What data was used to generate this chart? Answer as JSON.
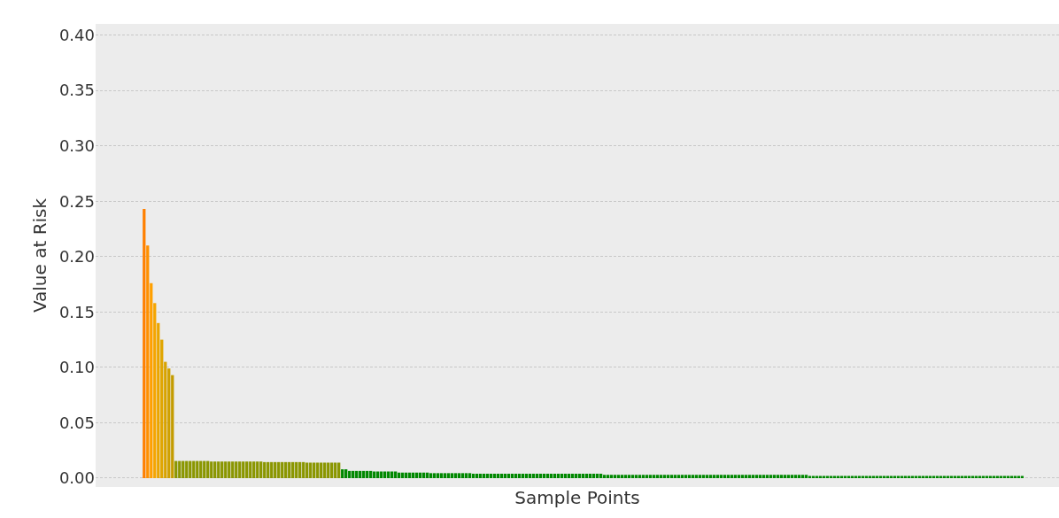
{
  "chart_data": {
    "type": "bar",
    "xlabel": "Sample Points",
    "ylabel": "Value at Risk",
    "categories": [
      null,
      null,
      null,
      null,
      null,
      null,
      null,
      null,
      null,
      null,
      null,
      null,
      null,
      null,
      null,
      null,
      null,
      null,
      null,
      null,
      null,
      null,
      null,
      null,
      null,
      null,
      null,
      null,
      null,
      null,
      null,
      null,
      null,
      null,
      null,
      null,
      null,
      null,
      null,
      null,
      null,
      null,
      null,
      null,
      null,
      null,
      null,
      null,
      null,
      null,
      null,
      null,
      null,
      null,
      null,
      null,
      null,
      null,
      null,
      null,
      null,
      null,
      null,
      null,
      null,
      null,
      null,
      null,
      null,
      null,
      null,
      null,
      null,
      null,
      null,
      null,
      null,
      null,
      null,
      null,
      null,
      null,
      null,
      null,
      null,
      null,
      null,
      null,
      null,
      null,
      null,
      null,
      null,
      null,
      null,
      null,
      null,
      null,
      null,
      null,
      null,
      null,
      null,
      null,
      null,
      null,
      null,
      null,
      null,
      null,
      null,
      null,
      null,
      null,
      null,
      null,
      null,
      null,
      null,
      null,
      null,
      null,
      null,
      null,
      null,
      null,
      null,
      null,
      null,
      null,
      null,
      null,
      null,
      null,
      null,
      null,
      null,
      null,
      null,
      null,
      null,
      null,
      null,
      null,
      null,
      null,
      null,
      null,
      null,
      null,
      null,
      null,
      null,
      null,
      null,
      null,
      null,
      null,
      null,
      null,
      null,
      null,
      null,
      null,
      null,
      null,
      null,
      null,
      null,
      null,
      null,
      null,
      null,
      null,
      null,
      null,
      null,
      null,
      null,
      null,
      null,
      null,
      null,
      null,
      null,
      null,
      null,
      null,
      null,
      null,
      null,
      null,
      null,
      null,
      null,
      null,
      null,
      null,
      null,
      null,
      null,
      null,
      null,
      null,
      null,
      null,
      null,
      null,
      null,
      null,
      null,
      null,
      null,
      null,
      null,
      null,
      null,
      null,
      null,
      null,
      null,
      null,
      null,
      null,
      null,
      null,
      null,
      null,
      null,
      null,
      null,
      null,
      null,
      null,
      null,
      null,
      null,
      null,
      null,
      null,
      null,
      null,
      null,
      null,
      null,
      null,
      null,
      null,
      null
    ],
    "values": [
      0.243,
      0.21,
      0.176,
      0.158,
      0.14,
      0.125,
      0.105,
      0.099,
      0.093,
      0.0155,
      0.0155,
      0.0155,
      0.0155,
      0.0155,
      0.0155,
      0.0155,
      0.0155,
      0.0155,
      0.0155,
      0.015,
      0.015,
      0.015,
      0.015,
      0.015,
      0.015,
      0.015,
      0.015,
      0.015,
      0.015,
      0.015,
      0.015,
      0.015,
      0.015,
      0.015,
      0.0145,
      0.0145,
      0.0145,
      0.0145,
      0.0145,
      0.0145,
      0.0145,
      0.0145,
      0.0145,
      0.0145,
      0.0145,
      0.0145,
      0.014,
      0.014,
      0.014,
      0.014,
      0.014,
      0.014,
      0.014,
      0.014,
      0.014,
      0.014,
      0.008,
      0.008,
      0.0065,
      0.0065,
      0.0065,
      0.0065,
      0.0065,
      0.0065,
      0.0065,
      0.006,
      0.006,
      0.006,
      0.006,
      0.006,
      0.006,
      0.006,
      0.005,
      0.005,
      0.005,
      0.005,
      0.005,
      0.005,
      0.005,
      0.005,
      0.005,
      0.0045,
      0.0045,
      0.0045,
      0.0045,
      0.0045,
      0.0045,
      0.0045,
      0.0045,
      0.0045,
      0.0045,
      0.0045,
      0.0045,
      0.004,
      0.004,
      0.004,
      0.004,
      0.004,
      0.004,
      0.004,
      0.004,
      0.004,
      0.004,
      0.004,
      0.004,
      0.004,
      0.004,
      0.004,
      0.004,
      0.004,
      0.004,
      0.004,
      0.004,
      0.004,
      0.004,
      0.004,
      0.004,
      0.004,
      0.004,
      0.004,
      0.004,
      0.004,
      0.004,
      0.004,
      0.004,
      0.004,
      0.004,
      0.004,
      0.004,
      0.004,
      0.003,
      0.003,
      0.003,
      0.003,
      0.003,
      0.003,
      0.003,
      0.003,
      0.003,
      0.003,
      0.003,
      0.003,
      0.003,
      0.003,
      0.003,
      0.003,
      0.003,
      0.003,
      0.003,
      0.003,
      0.003,
      0.003,
      0.003,
      0.003,
      0.003,
      0.003,
      0.003,
      0.003,
      0.003,
      0.003,
      0.003,
      0.003,
      0.003,
      0.003,
      0.003,
      0.003,
      0.003,
      0.003,
      0.003,
      0.003,
      0.003,
      0.003,
      0.003,
      0.003,
      0.003,
      0.003,
      0.003,
      0.003,
      0.003,
      0.003,
      0.003,
      0.003,
      0.003,
      0.003,
      0.003,
      0.003,
      0.003,
      0.003,
      0.002,
      0.002,
      0.002,
      0.002,
      0.002,
      0.002,
      0.002,
      0.002,
      0.002,
      0.002,
      0.002,
      0.002,
      0.002,
      0.002,
      0.002,
      0.002,
      0.002,
      0.002,
      0.002,
      0.002,
      0.002,
      0.002,
      0.002,
      0.002,
      0.002,
      0.002,
      0.002,
      0.002,
      0.002,
      0.002,
      0.002,
      0.002,
      0.002,
      0.002,
      0.002,
      0.002,
      0.002,
      0.002,
      0.002,
      0.002,
      0.002,
      0.002,
      0.002,
      0.002,
      0.002,
      0.002,
      0.002,
      0.002,
      0.002,
      0.002,
      0.002,
      0.002,
      0.002,
      0.002,
      0.002,
      0.002,
      0.002,
      0.002,
      0.002,
      0.002,
      0.002
    ],
    "colors": [
      "#ff8000",
      "#ff9000",
      "#ffa000",
      "#f5a500",
      "#eaa500",
      "#e0a500",
      "#d8a300",
      "#cfa000",
      "#c49c00",
      "#8a9600",
      "#8a9600",
      "#8a9600",
      "#8a9600",
      "#8a9600",
      "#8a9600",
      "#8a9600",
      "#8a9600",
      "#8a9600",
      "#8a9600",
      "#8a9600",
      "#8a9600",
      "#8a9600",
      "#8a9600",
      "#8a9600",
      "#8a9600",
      "#8a9600",
      "#8a9600",
      "#8a9600",
      "#8a9600",
      "#8a9600",
      "#8a9600",
      "#8a9600",
      "#8a9600",
      "#8a9600",
      "#8a9600",
      "#8a9600",
      "#8a9600",
      "#8a9600",
      "#8a9600",
      "#8a9600",
      "#8a9600",
      "#8a9600",
      "#8a9600",
      "#8a9600",
      "#8a9600",
      "#8a9600",
      "#8a9600",
      "#8a9600",
      "#8a9600",
      "#8a9600",
      "#8a9600",
      "#8a9600",
      "#8a9600",
      "#8a9600",
      "#8a9600",
      "#8a9600",
      "#008800",
      "#008800",
      "#008800",
      "#008800",
      "#008800",
      "#008800",
      "#008800",
      "#008800",
      "#008800",
      "#008800",
      "#008800",
      "#008800",
      "#008800",
      "#008800",
      "#008800",
      "#008800",
      "#008800",
      "#008800",
      "#008800",
      "#008800",
      "#008800",
      "#008800",
      "#008800",
      "#008800",
      "#008800",
      "#008800",
      "#008800",
      "#008800",
      "#008800",
      "#008800",
      "#008800",
      "#008800",
      "#008800",
      "#008800",
      "#008800",
      "#008800",
      "#008800",
      "#008800",
      "#008800",
      "#008800",
      "#008800",
      "#008800",
      "#008800",
      "#008800",
      "#008800",
      "#008800",
      "#008800",
      "#008800",
      "#008800",
      "#008800",
      "#008800",
      "#008800",
      "#008800",
      "#008800",
      "#008800",
      "#008800",
      "#008800",
      "#008800",
      "#008800",
      "#008800",
      "#008800",
      "#008800",
      "#008800",
      "#008800",
      "#008800",
      "#008800",
      "#008800",
      "#008800",
      "#008800",
      "#008800",
      "#008800",
      "#008800",
      "#008800",
      "#008800",
      "#008800",
      "#008800",
      "#008800",
      "#008800",
      "#008800",
      "#008800",
      "#008800",
      "#008800",
      "#008800",
      "#008800",
      "#008800",
      "#008800",
      "#008800",
      "#008800",
      "#008800",
      "#008800",
      "#008800",
      "#008800",
      "#008800",
      "#008800",
      "#008800",
      "#008800",
      "#008800",
      "#008800",
      "#008800",
      "#008800",
      "#008800",
      "#008800",
      "#008800",
      "#008800",
      "#008800",
      "#008800",
      "#008800",
      "#008800",
      "#008800",
      "#008800",
      "#008800",
      "#008800",
      "#008800",
      "#008800",
      "#008800",
      "#008800",
      "#008800",
      "#008800",
      "#008800",
      "#008800",
      "#008800",
      "#008800",
      "#008800",
      "#008800",
      "#008800",
      "#008800",
      "#008800",
      "#008800",
      "#008800",
      "#008800",
      "#008800",
      "#008800",
      "#008800",
      "#008800",
      "#008800",
      "#008800",
      "#008800",
      "#008800",
      "#008800",
      "#008800",
      "#008800",
      "#008800",
      "#008800",
      "#008800",
      "#008800",
      "#008800",
      "#008800",
      "#008800",
      "#008800",
      "#008800",
      "#008800",
      "#008800",
      "#008800",
      "#008800",
      "#008800",
      "#008800",
      "#008800",
      "#008800",
      "#008800",
      "#008800",
      "#008800",
      "#008800",
      "#008800",
      "#008800",
      "#008800",
      "#008800",
      "#008800",
      "#008800",
      "#008800",
      "#008800",
      "#008800",
      "#008800",
      "#008800",
      "#008800",
      "#008800",
      "#008800",
      "#008800",
      "#008800",
      "#008800",
      "#008800",
      "#008800",
      "#008800",
      "#008800",
      "#008800",
      "#008800",
      "#008800",
      "#008800",
      "#008800",
      "#008800",
      "#008800",
      "#008800",
      "#008800",
      "#008800"
    ],
    "ylim": [
      -0.008,
      0.41
    ],
    "yticks": [
      {
        "value": 0,
        "label": "0.00"
      },
      {
        "value": 0.05,
        "label": "0.05"
      },
      {
        "value": 0.1,
        "label": "0.10"
      },
      {
        "value": 0.15,
        "label": "0.15"
      },
      {
        "value": 0.2,
        "label": "0.20"
      },
      {
        "value": 0.25,
        "label": "0.25"
      },
      {
        "value": 0.3,
        "label": "0.30"
      },
      {
        "value": 0.35,
        "label": "0.35"
      },
      {
        "value": 0.4,
        "label": "0.40"
      }
    ],
    "grid": "y"
  }
}
